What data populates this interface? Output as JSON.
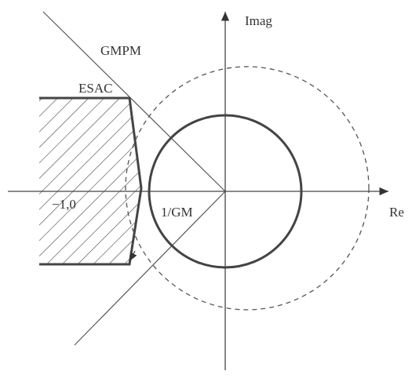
{
  "labels": {
    "imag": "Imag",
    "re": "Re",
    "gmpm": "GMPM",
    "esac": "ESAC",
    "point": "−1,0",
    "gm": "1/GM"
  }
}
